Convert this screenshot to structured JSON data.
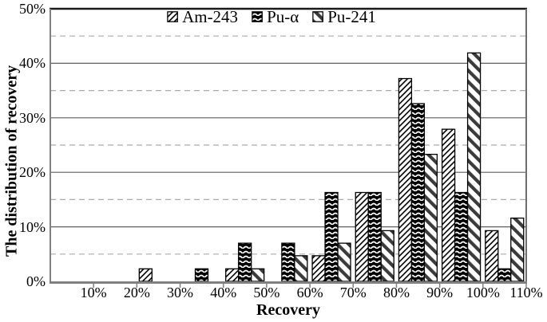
{
  "chart_data": {
    "type": "bar",
    "title": "",
    "xlabel": "Recovery",
    "ylabel": "The distribution of recovery",
    "xlim": [
      0,
      110
    ],
    "ylim": [
      0,
      50
    ],
    "x_tick_labels": [
      "10%",
      "20%",
      "30%",
      "40%",
      "50%",
      "60%",
      "70%",
      "80%",
      "90%",
      "100%",
      "110%"
    ],
    "y_tick_labels": [
      "0%",
      "10%",
      "20%",
      "30%",
      "40%",
      "50%"
    ],
    "bin_width_percent": 10,
    "categories": [
      "0-10%",
      "10-20%",
      "20-30%",
      "30-40%",
      "40-50%",
      "50-60%",
      "60-70%",
      "70-80%",
      "80-90%",
      "90-100%",
      "100-110%"
    ],
    "series": [
      {
        "name": "Am-243",
        "pattern": "diagonal-up-hatch",
        "values": [
          0,
          0,
          2.3,
          0,
          2.3,
          0,
          4.7,
          16.3,
          37.2,
          27.9,
          9.3
        ]
      },
      {
        "name": "Pu-α",
        "pattern": "black-white-chevrons",
        "values": [
          0,
          0,
          0,
          2.3,
          7.0,
          7.0,
          16.3,
          16.3,
          32.6,
          16.3,
          2.3
        ]
      },
      {
        "name": "Pu-241",
        "pattern": "diagonal-down-stripe",
        "values": [
          0,
          0,
          0,
          0,
          2.3,
          4.7,
          7.0,
          9.3,
          23.3,
          41.9,
          11.6
        ]
      }
    ],
    "grid": {
      "major_interval": 10,
      "major_style": "solid",
      "minor_interval": 5,
      "minor_style": "dashed"
    },
    "legend_position": "top-center"
  },
  "colors": {
    "background": "#ffffff",
    "text": "#000000",
    "bar_outline": "#000000",
    "top_border": "#1a1a1a",
    "axis_line": "#808080",
    "major_grid": "#5f5f5f",
    "minor_grid": "#ababab",
    "stripe_dark": "#3b3b3b"
  }
}
